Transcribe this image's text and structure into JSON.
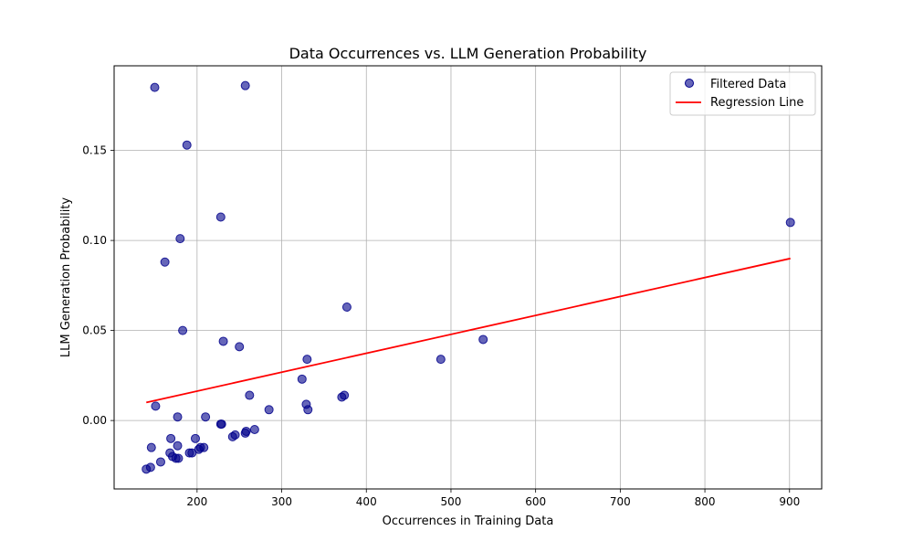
{
  "chart_data": {
    "type": "scatter",
    "title": "Data Occurrences vs. LLM Generation Probability",
    "xlabel": "Occurrences in Training Data",
    "ylabel": "LLM Generation Probability",
    "xlim": [
      102,
      938
    ],
    "ylim": [
      -0.038,
      0.197
    ],
    "xticks": [
      200,
      300,
      400,
      500,
      600,
      700,
      800,
      900
    ],
    "xtick_labels": [
      "200",
      "300",
      "400",
      "500",
      "600",
      "700",
      "800",
      "900"
    ],
    "yticks": [
      0.0,
      0.05,
      0.1,
      0.15
    ],
    "ytick_labels": [
      "0.00",
      "0.05",
      "0.10",
      "0.15"
    ],
    "grid": true,
    "legend_position": "top-right",
    "series": [
      {
        "name": "Filtered Data",
        "kind": "scatter",
        "color": "#00008b",
        "points": [
          [
            150,
            0.185
          ],
          [
            257,
            0.186
          ],
          [
            188,
            0.153
          ],
          [
            228,
            0.113
          ],
          [
            180,
            0.101
          ],
          [
            162,
            0.088
          ],
          [
            183,
            0.05
          ],
          [
            231,
            0.044
          ],
          [
            250,
            0.041
          ],
          [
            377,
            0.063
          ],
          [
            330,
            0.034
          ],
          [
            324,
            0.023
          ],
          [
            488,
            0.034
          ],
          [
            538,
            0.045
          ],
          [
            901,
            0.11
          ],
          [
            262,
            0.014
          ],
          [
            329,
            0.009
          ],
          [
            331,
            0.006
          ],
          [
            371,
            0.013
          ],
          [
            374,
            0.014
          ],
          [
            151,
            0.008
          ],
          [
            285,
            0.006
          ],
          [
            177,
            0.002
          ],
          [
            210,
            0.002
          ],
          [
            228,
            -0.002
          ],
          [
            229,
            -0.002
          ],
          [
            268,
            -0.005
          ],
          [
            258,
            -0.006
          ],
          [
            257,
            -0.007
          ],
          [
            245,
            -0.008
          ],
          [
            242,
            -0.009
          ],
          [
            169,
            -0.01
          ],
          [
            198,
            -0.01
          ],
          [
            146,
            -0.015
          ],
          [
            177,
            -0.014
          ],
          [
            208,
            -0.015
          ],
          [
            204,
            -0.015
          ],
          [
            202,
            -0.016
          ],
          [
            194,
            -0.018
          ],
          [
            191,
            -0.018
          ],
          [
            168,
            -0.018
          ],
          [
            171,
            -0.02
          ],
          [
            175,
            -0.021
          ],
          [
            178,
            -0.021
          ],
          [
            157,
            -0.023
          ],
          [
            145,
            -0.026
          ],
          [
            140,
            -0.027
          ]
        ]
      },
      {
        "name": "Regression Line",
        "kind": "line",
        "color": "#ff0000",
        "points": [
          [
            140,
            0.01
          ],
          [
            901,
            0.09
          ]
        ]
      }
    ]
  }
}
